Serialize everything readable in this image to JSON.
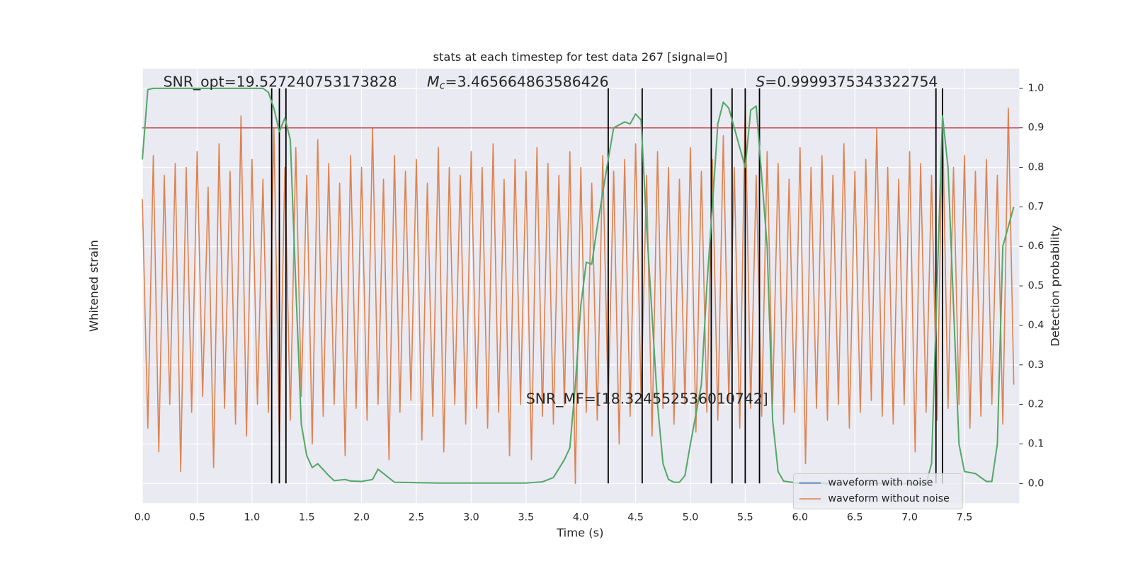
{
  "chart_data": {
    "type": "line",
    "title": "stats at each timestep for test data 267 [signal=0]",
    "x_label": "Time (s)",
    "y_label": "Whitened strain",
    "y2_label": "Detection probability",
    "xlim": [
      0,
      8
    ],
    "xticks": [
      {
        "value": 0,
        "label": "0.0"
      },
      0.5,
      {
        "value": 1,
        "label": "1.0"
      },
      1.5,
      {
        "value": 2,
        "label": "2.0"
      },
      2.5,
      {
        "value": 3,
        "label": "3.0"
      },
      3.5,
      {
        "value": 4,
        "label": "4.0"
      },
      4.5,
      {
        "value": 5,
        "label": "5.0"
      },
      5.5,
      {
        "value": 6,
        "label": "6.0"
      },
      6.5,
      {
        "value": 7,
        "label": "7.0"
      },
      7.5
    ],
    "y2lim": [
      -0.05,
      1.05
    ],
    "y2ticks": [
      {
        "value": 0,
        "label": "0.0"
      },
      0.1,
      0.2,
      0.3,
      0.4,
      0.5,
      0.6,
      0.7,
      0.8,
      0.9,
      {
        "value": 1,
        "label": "1.0"
      }
    ],
    "grid": true,
    "legend": "lower right",
    "series": [
      {
        "name": "waveform with noise",
        "color": "#4c72b0"
      },
      {
        "name": "waveform without noise",
        "color": "#dd8452",
        "axis": "y2",
        "x": [
          0,
          0.05,
          0.1,
          0.15,
          0.2,
          0.25,
          0.3,
          0.35,
          0.4,
          0.45,
          0.5,
          0.55,
          0.6,
          0.65,
          0.7,
          0.75,
          0.8,
          0.85,
          0.9,
          0.95,
          1,
          1.05,
          1.1,
          1.15,
          1.2,
          1.25,
          1.3,
          1.35,
          1.4,
          1.45,
          1.5,
          1.55,
          1.6,
          1.65,
          1.7,
          1.75,
          1.8,
          1.85,
          1.9,
          1.95,
          2,
          2.05,
          2.1,
          2.15,
          2.2,
          2.25,
          2.3,
          2.35,
          2.4,
          2.45,
          2.5,
          2.55,
          2.6,
          2.65,
          2.7,
          2.75,
          2.8,
          2.85,
          2.9,
          2.95,
          3,
          3.05,
          3.1,
          3.15,
          3.2,
          3.25,
          3.3,
          3.35,
          3.4,
          3.45,
          3.5,
          3.55,
          3.6,
          3.65,
          3.7,
          3.75,
          3.8,
          3.85,
          3.9,
          3.95,
          4,
          4.05,
          4.1,
          4.15,
          4.2,
          4.25,
          4.3,
          4.35,
          4.4,
          4.45,
          4.5,
          4.55,
          4.6,
          4.65,
          4.7,
          4.75,
          4.8,
          4.85,
          4.9,
          4.95,
          5,
          5.05,
          5.1,
          5.15,
          5.2,
          5.25,
          5.3,
          5.35,
          5.4,
          5.45,
          5.5,
          5.55,
          5.6,
          5.65,
          5.7,
          5.75,
          5.8,
          5.85,
          5.9,
          5.95,
          6,
          6.05,
          6.1,
          6.15,
          6.2,
          6.25,
          6.3,
          6.35,
          6.4,
          6.45,
          6.5,
          6.55,
          6.6,
          6.65,
          6.7,
          6.75,
          6.8,
          6.85,
          6.9,
          6.95,
          7,
          7.05,
          7.1,
          7.15,
          7.2,
          7.25,
          7.3,
          7.35,
          7.4,
          7.45,
          7.5,
          7.55,
          7.6,
          7.65,
          7.7,
          7.75,
          7.8,
          7.85,
          7.9,
          7.95
        ],
        "values": [
          0.72,
          0.14,
          0.83,
          0.08,
          0.78,
          0.2,
          0.81,
          0.03,
          0.8,
          0.18,
          0.84,
          0.22,
          0.75,
          0.04,
          0.86,
          0.19,
          0.79,
          0.15,
          0.93,
          0.12,
          0.82,
          0.2,
          0.77,
          0.18,
          0.9,
          0.1,
          0.8,
          0.16,
          0.85,
          0.22,
          0.78,
          0.1,
          0.87,
          0.17,
          0.81,
          0.2,
          0.76,
          0.07,
          0.83,
          0.19,
          0.8,
          0.16,
          0.9,
          0.2,
          0.77,
          0.06,
          0.83,
          0.18,
          0.79,
          0.21,
          0.82,
          0.11,
          0.76,
          0.17,
          0.85,
          0.08,
          0.8,
          0.2,
          0.78,
          0.15,
          0.84,
          0.19,
          0.8,
          0.14,
          0.86,
          0.18,
          0.77,
          0.07,
          0.82,
          0.2,
          0.79,
          0.06,
          0.85,
          0.17,
          0.81,
          0.15,
          0.78,
          0.2,
          0.84,
          0.0,
          0.8,
          0.18,
          0.76,
          0.16,
          0.83,
          0.2,
          0.79,
          0.1,
          0.82,
          0.17,
          0.86,
          0.21,
          0.78,
          0.12,
          0.84,
          0.19,
          0.8,
          0.15,
          0.77,
          0.2,
          0.85,
          0.13,
          0.79,
          0.18,
          0.82,
          0.16,
          0.88,
          0.21,
          0.8,
          0.14,
          0.96,
          0.19,
          0.78,
          0.17,
          0.84,
          0.2,
          0.81,
          0.15,
          0.77,
          0.18,
          0.85,
          0.05,
          0.8,
          0.19,
          0.83,
          0.16,
          0.78,
          0.2,
          0.86,
          0.14,
          0.79,
          0.18,
          0.82,
          0.21,
          0.9,
          0.17,
          0.8,
          0.15,
          0.77,
          0.2,
          0.84,
          0.08,
          0.81,
          0.18,
          0.78,
          0.16,
          0.93,
          0.19,
          0.8,
          0.2,
          0.83,
          0.14,
          0.79,
          0.17,
          0.82,
          0.2,
          0.78,
          0.15,
          0.95,
          0.25
        ]
      }
    ],
    "probability": {
      "color": "#55a868",
      "axis": "y2",
      "x": [
        0,
        0.05,
        0.1,
        0.2,
        0.4,
        0.6,
        0.8,
        1,
        1.1,
        1.15,
        1.2,
        1.25,
        1.3,
        1.35,
        1.4,
        1.45,
        1.5,
        1.55,
        1.6,
        1.7,
        1.75,
        1.85,
        1.9,
        2,
        2.1,
        2.15,
        2.2,
        2.3,
        2.5,
        2.7,
        3,
        3.5,
        3.65,
        3.75,
        3.85,
        3.9,
        3.95,
        4,
        4.05,
        4.1,
        4.15,
        4.25,
        4.3,
        4.4,
        4.45,
        4.5,
        4.55,
        4.6,
        4.7,
        4.75,
        4.8,
        4.85,
        4.9,
        4.95,
        5,
        5.1,
        5.15,
        5.2,
        5.25,
        5.3,
        5.35,
        5.45,
        5.5,
        5.55,
        5.6,
        5.7,
        5.75,
        5.8,
        5.85,
        6,
        6.5,
        7,
        7.15,
        7.2,
        7.25,
        7.3,
        7.35,
        7.45,
        7.5,
        7.6,
        7.7,
        7.75,
        7.8,
        7.85,
        7.95
      ],
      "values": [
        0.82,
        0.997,
        1,
        1,
        1,
        1,
        1,
        1,
        1,
        0.99,
        0.95,
        0.89,
        0.925,
        0.87,
        0.5,
        0.15,
        0.07,
        0.04,
        0.05,
        0.02,
        0.007,
        0.01,
        0.006,
        0.005,
        0.01,
        0.036,
        0.025,
        0.003,
        0.002,
        0.001,
        0.001,
        0.001,
        0.004,
        0.015,
        0.06,
        0.09,
        0.25,
        0.45,
        0.56,
        0.555,
        0.65,
        0.82,
        0.9,
        0.915,
        0.91,
        0.935,
        0.92,
        0.65,
        0.2,
        0.05,
        0.01,
        0.003,
        0.003,
        0.02,
        0.1,
        0.25,
        0.5,
        0.7,
        0.91,
        0.965,
        0.95,
        0.85,
        0.8,
        0.945,
        0.955,
        0.6,
        0.16,
        0.03,
        0.006,
        0,
        0,
        0,
        0,
        0.05,
        0.5,
        0.93,
        0.8,
        0.1,
        0.03,
        0.025,
        0.005,
        0.005,
        0.1,
        0.6,
        0.7
      ]
    },
    "threshold": {
      "y": 0.9,
      "color": "#c44e52"
    },
    "vlines": {
      "x": [
        1.18,
        1.25,
        1.31,
        4.25,
        4.56,
        5.19,
        5.38,
        5.5,
        5.63,
        7.24,
        7.3
      ],
      "ymin": 0,
      "ymax": 1,
      "color": "#000000"
    },
    "annotations": [
      {
        "parts": [
          {
            "text": "SNR_opt=19.527240753173828"
          }
        ]
      },
      {
        "parts": [
          {
            "text": "M",
            "italic": true
          },
          {
            "text": "c",
            "italic": true,
            "sub": true
          },
          {
            "text": "=3.465664863586426"
          }
        ]
      },
      {
        "parts": [
          {
            "text": "S",
            "italic": true
          },
          {
            "text": "=0.9999375343322754"
          }
        ]
      },
      {
        "parts": [
          {
            "text": "SNR_MF=[18.324552536010742]"
          }
        ]
      }
    ]
  }
}
